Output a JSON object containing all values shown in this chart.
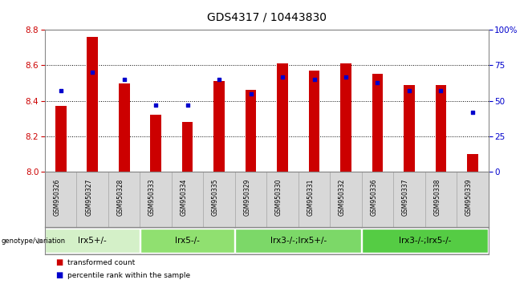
{
  "title": "GDS4317 / 10443830",
  "samples": [
    "GSM950326",
    "GSM950327",
    "GSM950328",
    "GSM950333",
    "GSM950334",
    "GSM950335",
    "GSM950329",
    "GSM950330",
    "GSM950331",
    "GSM950332",
    "GSM950336",
    "GSM950337",
    "GSM950338",
    "GSM950339"
  ],
  "transformed_count": [
    8.37,
    8.76,
    8.5,
    8.32,
    8.28,
    8.51,
    8.46,
    8.61,
    8.57,
    8.61,
    8.55,
    8.49,
    8.49,
    8.1
  ],
  "percentile_rank": [
    57,
    70,
    65,
    47,
    47,
    65,
    55,
    67,
    65,
    67,
    63,
    57,
    57,
    42
  ],
  "ylim_left": [
    8.0,
    8.8
  ],
  "ylim_right": [
    0,
    100
  ],
  "yticks_left": [
    8.0,
    8.2,
    8.4,
    8.6,
    8.8
  ],
  "yticks_right": [
    0,
    25,
    50,
    75,
    100
  ],
  "ytick_labels_right": [
    "0",
    "25",
    "50",
    "75",
    "100%"
  ],
  "bar_color": "#cc0000",
  "dot_color": "#0000cc",
  "bar_bottom": 8.0,
  "groups": [
    {
      "label": "lrx5+/-",
      "start": 0,
      "end": 3,
      "color": "#d4f0c8"
    },
    {
      "label": "lrx5-/-",
      "start": 3,
      "end": 6,
      "color": "#90e070"
    },
    {
      "label": "lrx3-/-;lrx5+/-",
      "start": 6,
      "end": 10,
      "color": "#7cd868"
    },
    {
      "label": "lrx3-/-;lrx5-/-",
      "start": 10,
      "end": 14,
      "color": "#55cc44"
    }
  ],
  "tick_label_color_left": "#cc0000",
  "tick_label_color_right": "#0000cc",
  "bar_width": 0.35,
  "axis_fontsize": 7.5,
  "title_fontsize": 10,
  "sample_fontsize": 5.5,
  "group_fontsize": 7.5
}
